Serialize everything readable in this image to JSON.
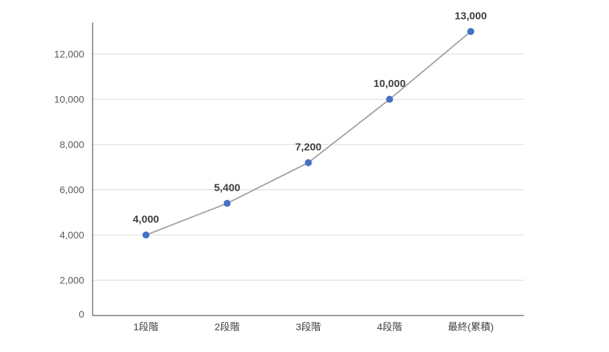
{
  "chart_data": {
    "type": "line",
    "categories": [
      "1段階",
      "2段階",
      "3段階",
      "4段階",
      "最終(累積)"
    ],
    "series": [
      {
        "values": [
          4000,
          5400,
          7200,
          10000,
          13000
        ],
        "data_labels": [
          "4,000",
          "5,400",
          "7,200",
          "10,000",
          "13,000"
        ],
        "line_color": "#a5a5a5",
        "marker_color": "#4472c4"
      }
    ],
    "y_ticks": [
      0,
      2000,
      4000,
      6000,
      8000,
      10000,
      12000
    ],
    "y_tick_labels": [
      "0",
      "2,000",
      "4,000",
      "6,000",
      "8,000",
      "10,000",
      "12,000"
    ],
    "ylim": [
      0,
      13400
    ],
    "grid": true,
    "legend": false,
    "gridline_color": "#d9d9d9",
    "axis_color": "#333333"
  }
}
